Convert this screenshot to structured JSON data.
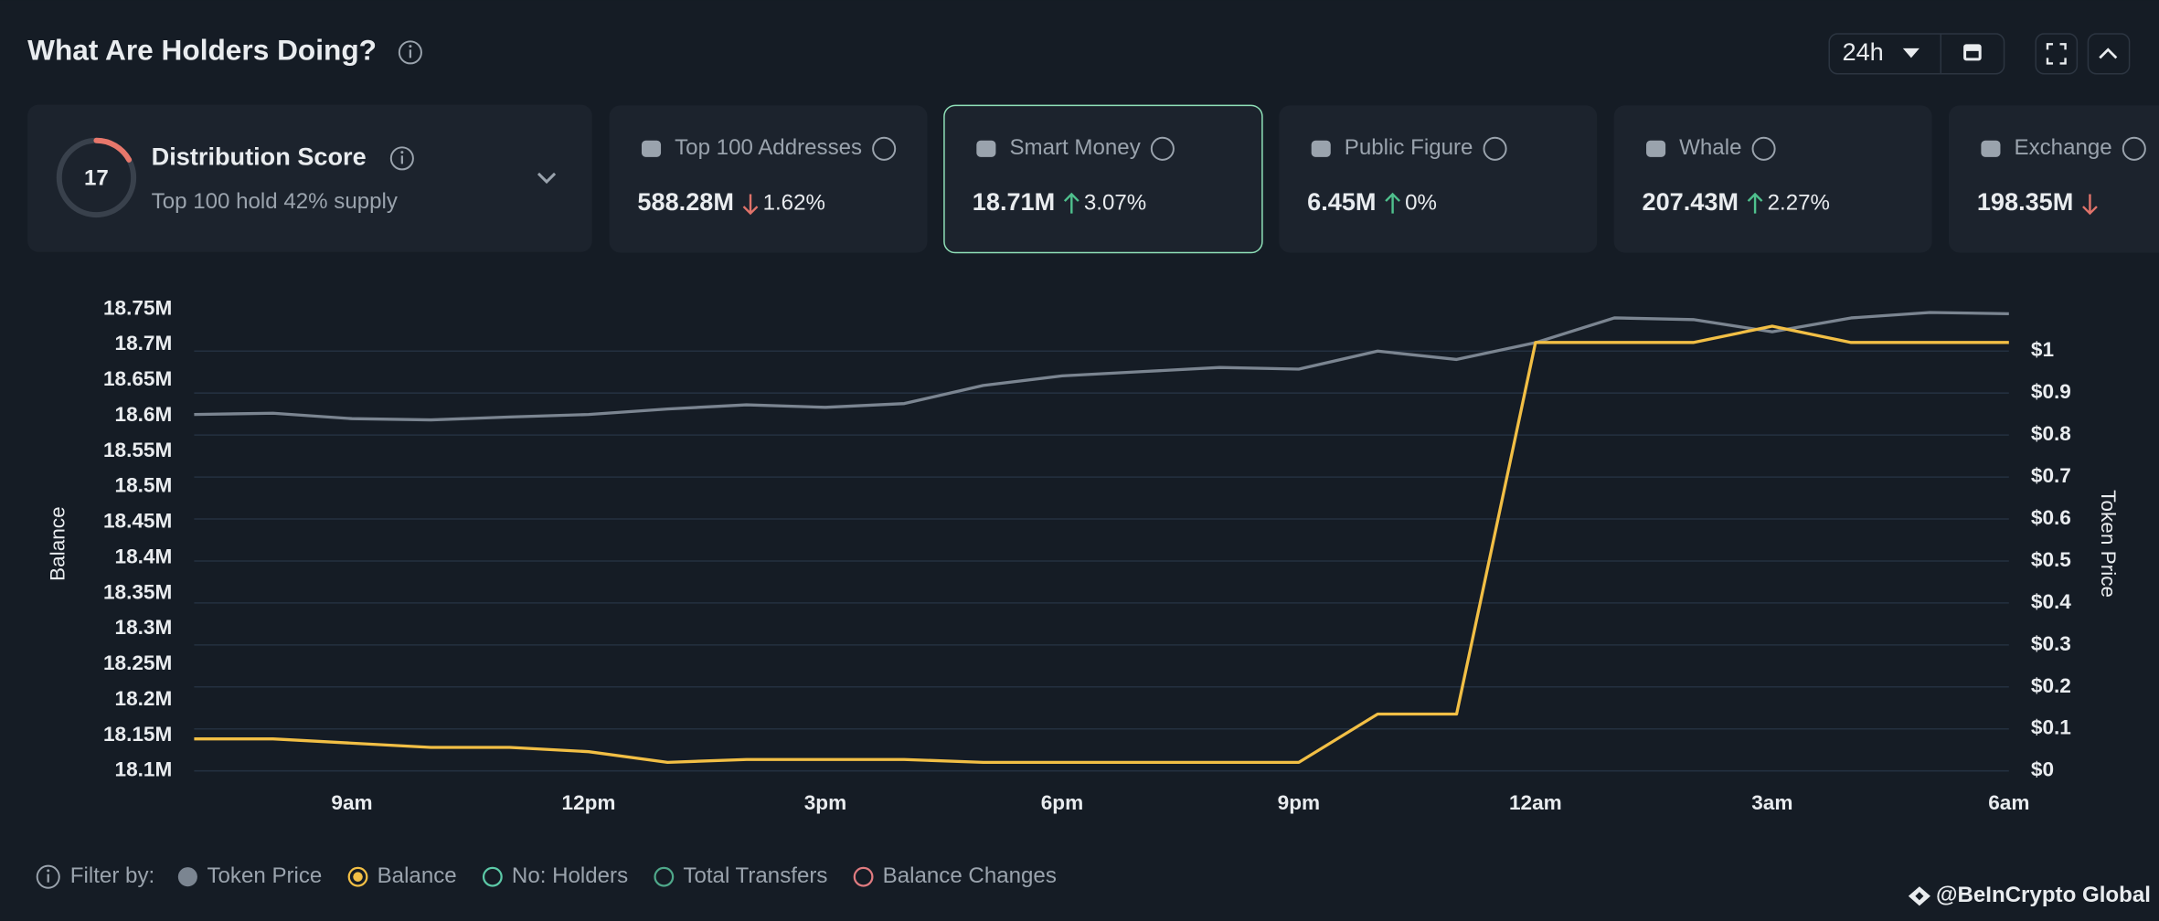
{
  "header": {
    "title": "What Are Holders Doing?",
    "timeframe": "24h"
  },
  "distribution": {
    "score": 17,
    "label": "Distribution Score",
    "subtitle": "Top 100 hold 42% supply"
  },
  "cards": [
    {
      "label": "Top 100 Addresses",
      "value": "588.28M",
      "change": "1.62%",
      "direction": "down"
    },
    {
      "label": "Smart Money",
      "value": "18.71M",
      "change": "3.07%",
      "direction": "up",
      "selected": true
    },
    {
      "label": "Public Figure",
      "value": "6.45M",
      "change": "0%",
      "direction": "up"
    },
    {
      "label": "Whale",
      "value": "207.43M",
      "change": "2.27%",
      "direction": "up"
    },
    {
      "label": "Exchange",
      "value": "198.35M",
      "direction": "down"
    }
  ],
  "chart_data": {
    "type": "line",
    "ylabel": "Balance",
    "y2label": "Token Price",
    "categories": [
      null,
      null,
      "9am",
      null,
      null,
      "12pm",
      null,
      null,
      "3pm",
      null,
      null,
      "6pm",
      null,
      null,
      "9pm",
      null,
      null,
      "12am",
      null,
      null,
      "3am",
      null,
      null,
      "6am"
    ],
    "ylim": [
      18100000,
      18750000
    ],
    "yticks": [
      {
        "value": 18100000,
        "label": "18.1M"
      },
      {
        "value": 18150000,
        "label": "18.15M"
      },
      {
        "value": 18200000,
        "label": "18.2M"
      },
      {
        "value": 18250000,
        "label": "18.25M"
      },
      {
        "value": 18300000,
        "label": "18.3M"
      },
      {
        "value": 18350000,
        "label": "18.35M"
      },
      {
        "value": 18400000,
        "label": "18.4M"
      },
      {
        "value": 18450000,
        "label": "18.45M"
      },
      {
        "value": 18500000,
        "label": "18.5M"
      },
      {
        "value": 18550000,
        "label": "18.55M"
      },
      {
        "value": 18600000,
        "label": "18.6M"
      },
      {
        "value": 18650000,
        "label": "18.65M"
      },
      {
        "value": 18700000,
        "label": "18.7M"
      },
      {
        "value": 18750000,
        "label": "18.75M"
      }
    ],
    "y2lim": [
      0,
      1.1
    ],
    "y2ticks": [
      {
        "value": 0,
        "label": "$0"
      },
      {
        "value": 0.1,
        "label": "$0.1"
      },
      {
        "value": 0.2,
        "label": "$0.2"
      },
      {
        "value": 0.3,
        "label": "$0.3"
      },
      {
        "value": 0.4,
        "label": "$0.4"
      },
      {
        "value": 0.5,
        "label": "$0.5"
      },
      {
        "value": 0.6,
        "label": "$0.6"
      },
      {
        "value": 0.7,
        "label": "$0.7"
      },
      {
        "value": 0.8,
        "label": "$0.8"
      },
      {
        "value": 0.9,
        "label": "$0.9"
      },
      {
        "value": 1,
        "label": "$1"
      }
    ],
    "grid": true,
    "series": [
      {
        "name": "Token Price",
        "color": "#7b8591",
        "axis": "y2",
        "values": [
          0.849,
          0.852,
          0.839,
          0.836,
          0.843,
          0.849,
          0.862,
          0.872,
          0.866,
          0.875,
          0.918,
          0.941,
          0.951,
          0.961,
          0.957,
          1.0,
          0.98,
          1.02,
          1.079,
          1.075,
          1.046,
          1.079,
          1.092,
          1.089
        ]
      },
      {
        "name": "Balance",
        "color": "#f2bf45",
        "axis": "y",
        "values": [
          18145000,
          18145000,
          18139000,
          18133000,
          18133000,
          18127000,
          18112000,
          18116000,
          18116000,
          18116000,
          18112000,
          18112000,
          18112000,
          18112000,
          18112000,
          18180000,
          18180000,
          18703000,
          18703000,
          18703000,
          18726000,
          18703000,
          18703000,
          18703000
        ]
      }
    ]
  },
  "filters": {
    "label": "Filter by:",
    "more": [
      {
        "name": "No: Holders",
        "color": "#5cc9a7"
      },
      {
        "name": "Total Transfers",
        "color": "#4fa88a"
      },
      {
        "name": "Balance Changes",
        "color": "#e07b80"
      }
    ]
  },
  "watermark": "@BeInCrypto Global"
}
